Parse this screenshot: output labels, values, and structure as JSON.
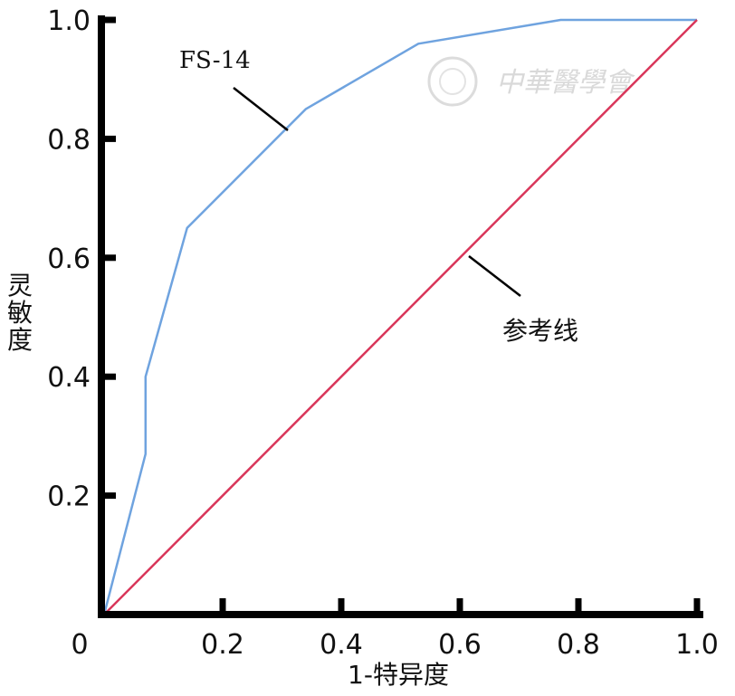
{
  "chart_data": {
    "type": "line",
    "xlabel": "1-特异度",
    "ylabel": "灵敏度",
    "xlim": [
      0,
      1.0
    ],
    "ylim": [
      0,
      1.0
    ],
    "x_ticks": [
      "0",
      "0.2",
      "0.4",
      "0.6",
      "0.8",
      "1.0"
    ],
    "y_ticks": [
      "0.2",
      "0.4",
      "0.6",
      "0.8",
      "1.0"
    ],
    "grid": false,
    "series": [
      {
        "name": "FS-14",
        "color": "#6fa3df",
        "x": [
          0,
          0.07,
          0.07,
          0.14,
          0.34,
          0.53,
          0.77,
          1.0
        ],
        "y": [
          0,
          0.27,
          0.4,
          0.65,
          0.85,
          0.96,
          1.0,
          1.0
        ]
      },
      {
        "name": "参考线",
        "color": "#d9365a",
        "x": [
          0,
          1.0
        ],
        "y": [
          0,
          1.0
        ]
      }
    ],
    "annotations": [
      "FS-14",
      "参考线"
    ]
  },
  "watermark": {
    "text": "中華醫學會"
  }
}
